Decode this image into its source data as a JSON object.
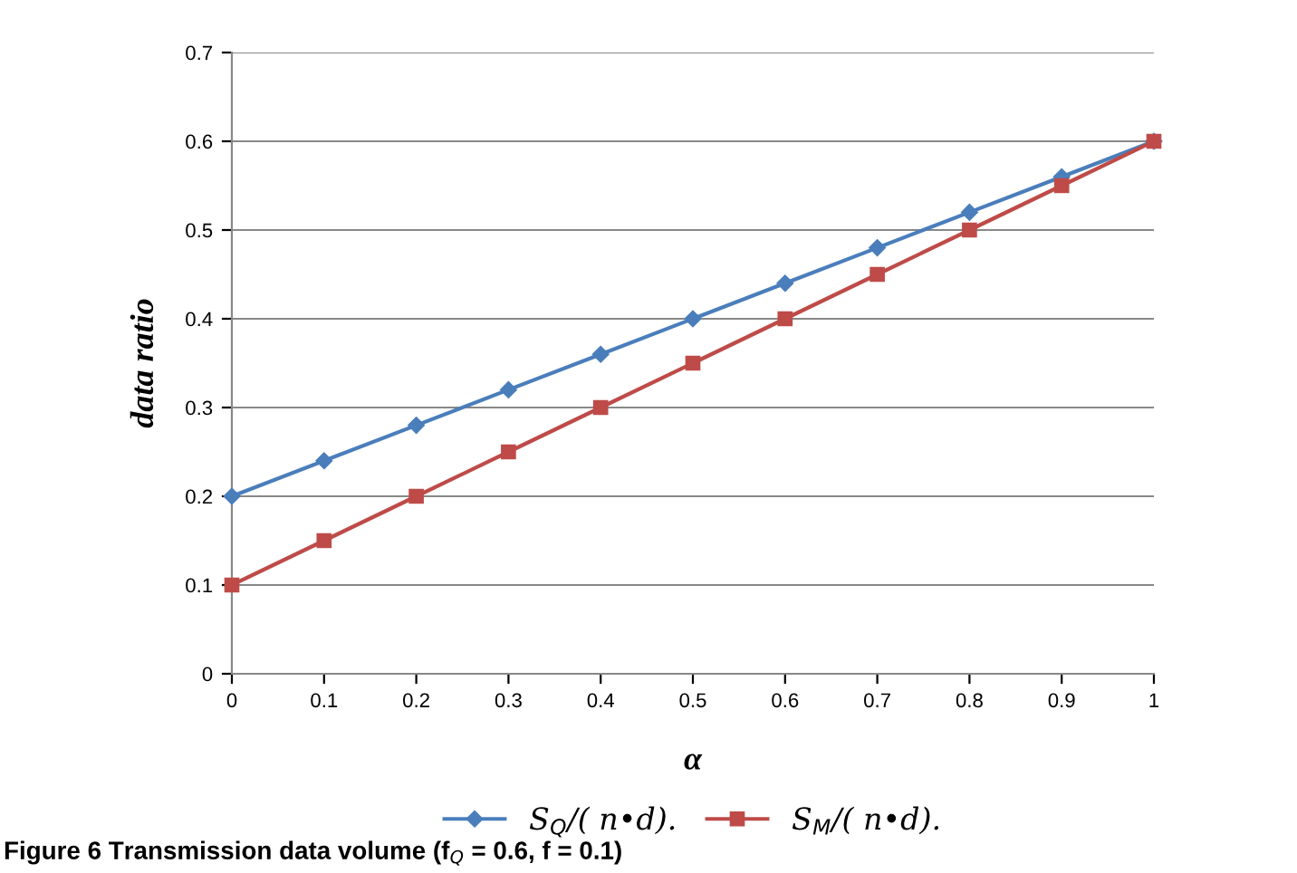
{
  "chart_data": {
    "type": "line",
    "xlabel": "α",
    "ylabel": "data ratio",
    "x": [
      0,
      0.1,
      0.2,
      0.3,
      0.4,
      0.5,
      0.6,
      0.7,
      0.8,
      0.9,
      1
    ],
    "series": [
      {
        "name": "S$_{Q}$/( n•d).",
        "color": "#4a7ebb",
        "marker": "diamond",
        "values": [
          0.2,
          0.24,
          0.28,
          0.32,
          0.36,
          0.4,
          0.44,
          0.48,
          0.52,
          0.56,
          0.6
        ]
      },
      {
        "name": "S$_{M}$/( n•d).",
        "color": "#be4b48",
        "marker": "square",
        "values": [
          0.1,
          0.15,
          0.2,
          0.25,
          0.3,
          0.35,
          0.4,
          0.45,
          0.5,
          0.55,
          0.6
        ]
      }
    ],
    "xlim": [
      0,
      1
    ],
    "xticks": [
      0,
      0.1,
      0.2,
      0.3,
      0.4,
      0.5,
      0.6,
      0.7,
      0.8,
      0.9,
      1
    ],
    "ylim": [
      0,
      0.7
    ],
    "yticks": [
      0,
      0.1,
      0.2,
      0.3,
      0.4,
      0.5,
      0.6,
      0.7
    ],
    "grid": "y",
    "legend": "bottom",
    "line_style": "solid",
    "annotations": [
      "Figure 6 Transmission data volume (f$_{Q}$ = 0.6, f = 0.1)"
    ]
  }
}
